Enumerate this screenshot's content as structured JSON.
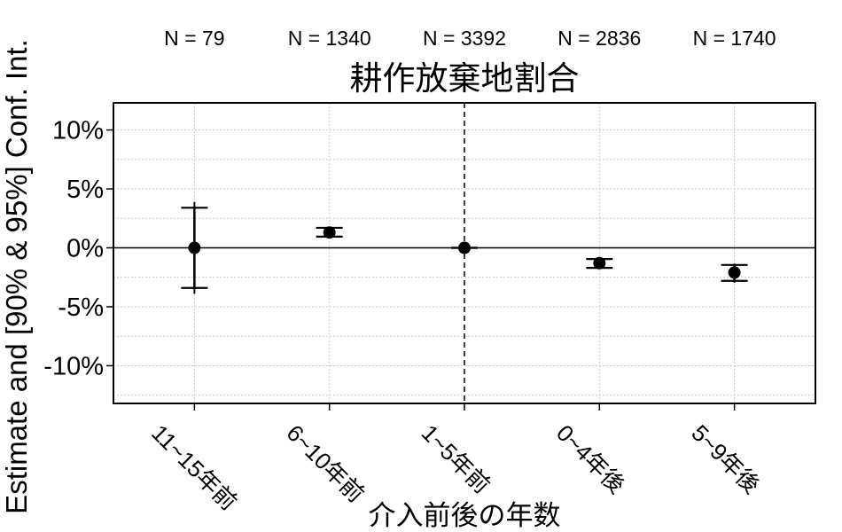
{
  "chart_data": {
    "type": "scatter",
    "error_bars": true,
    "title": "耕作放棄地割合",
    "xlabel": "介入前後の年数",
    "ylabel": "Estimate and [90% & 95%] Conf. Int.",
    "categories": [
      "11~15年前",
      "6~10年前",
      "1~5年前",
      "0~4年後",
      "5~9年後"
    ],
    "n_labels": [
      "N = 79",
      "N = 1340",
      "N = 3392",
      "N = 2836",
      "N = 1740"
    ],
    "series": [
      {
        "values": [
          0,
          1.3,
          0,
          -1.3,
          -2.1
        ],
        "ci90": [
          [
            -3.4,
            3.4
          ],
          [
            0.95,
            1.7
          ],
          [
            0,
            0
          ],
          [
            -1.7,
            -0.95
          ],
          [
            -2.8,
            -1.45
          ]
        ],
        "ci95": [
          [
            -3.9,
            3.9
          ],
          [
            0.9,
            1.8
          ],
          [
            0,
            0
          ],
          [
            -1.8,
            -0.85
          ],
          [
            -2.95,
            -1.35
          ]
        ]
      }
    ],
    "yticks": [
      10,
      5,
      0,
      -5,
      -10
    ],
    "ytick_labels": [
      "10%",
      "5%",
      "0%",
      "-5%",
      "-10%"
    ],
    "ylim": [
      -13.2,
      12.3
    ],
    "grid": true,
    "grid_step": 2.5,
    "hline": 0,
    "xline": "1~5年前"
  },
  "colors": {
    "marks": "#000000",
    "grid": "#c8c8c8",
    "background": "#ffffff"
  }
}
